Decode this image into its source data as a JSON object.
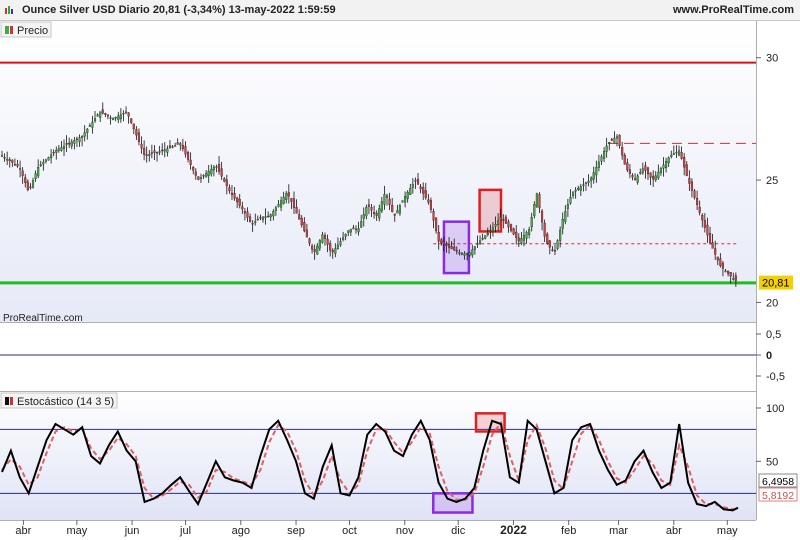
{
  "header": {
    "title": "Ounce Silver USD Diario 20,81 (-3,34%) 13-may-2022 1:59:59",
    "site": "www.ProRealTime.com"
  },
  "price_panel": {
    "legend": "Precio",
    "watermark": "ProRealTime.com",
    "last_label": "20,81",
    "last_value": 20.81,
    "resistance_level": 29.8,
    "support_level": 20.8,
    "dashed_upper_level": 26.5,
    "dashed_lower_level": 22.4,
    "ticks": [
      {
        "v": 30,
        "label": "30"
      },
      {
        "v": 25,
        "label": "25"
      },
      {
        "v": 20,
        "label": "20"
      }
    ]
  },
  "mid_panel": {
    "ticks": [
      {
        "v": 0.5,
        "label": "0,5"
      },
      {
        "v": 0,
        "label": "0"
      },
      {
        "v": -0.5,
        "label": "-0,5"
      }
    ]
  },
  "stoch_panel": {
    "legend": "Estocástico (14 3 5)",
    "k_label": "6,4958",
    "d_label": "5,8192",
    "upper_band": 80,
    "lower_band": 20,
    "ticks": [
      {
        "v": 100,
        "label": "100"
      },
      {
        "v": 50,
        "label": "50"
      }
    ]
  },
  "x_axis": {
    "months": [
      {
        "label": "abr",
        "day": 12
      },
      {
        "label": "may",
        "day": 42
      },
      {
        "label": "jun",
        "day": 73
      },
      {
        "label": "jul",
        "day": 103
      },
      {
        "label": "ago",
        "day": 134
      },
      {
        "label": "sep",
        "day": 165
      },
      {
        "label": "oct",
        "day": 195
      },
      {
        "label": "nov",
        "day": 226
      },
      {
        "label": "dic",
        "day": 256
      },
      {
        "label": "2022",
        "day": 287,
        "bold": true
      },
      {
        "label": "feb",
        "day": 318
      },
      {
        "label": "mar",
        "day": 346
      },
      {
        "label": "abr",
        "day": 377
      },
      {
        "label": "may",
        "day": 407
      }
    ]
  },
  "chart_data": {
    "type": "line",
    "x_unit": "days",
    "series": [
      {
        "name": "Precio",
        "x": [
          0,
          10,
          15,
          20,
          30,
          45,
          55,
          62,
          70,
          80,
          90,
          100,
          110,
          120,
          128,
          135,
          140,
          146,
          150,
          160,
          168,
          175,
          180,
          185,
          190,
          195,
          200,
          205,
          210,
          215,
          220,
          225,
          232,
          240,
          245,
          252,
          258,
          262,
          268,
          275,
          280,
          285,
          290,
          296,
          300,
          305,
          310,
          315,
          320,
          330,
          340,
          345,
          350,
          355,
          360,
          365,
          370,
          375,
          380,
          385,
          390,
          397,
          403,
          410,
          413
        ],
        "values": [
          26.0,
          25.5,
          24.5,
          25.5,
          26.2,
          26.8,
          27.8,
          27.5,
          27.8,
          26.0,
          26.2,
          26.5,
          25.0,
          25.6,
          24.5,
          23.8,
          23.2,
          23.5,
          23.5,
          24.5,
          23.2,
          22.0,
          22.8,
          22.0,
          22.5,
          23.0,
          23.0,
          24.0,
          23.5,
          24.5,
          23.5,
          24.2,
          25.0,
          24.0,
          22.5,
          22.2,
          22.0,
          22.0,
          22.5,
          23.0,
          23.5,
          23.0,
          22.5,
          23.0,
          24.5,
          22.5,
          22.0,
          23.5,
          24.5,
          25.0,
          26.5,
          26.8,
          25.5,
          25.0,
          25.5,
          25.0,
          25.5,
          26.0,
          26.2,
          25.0,
          24.0,
          22.5,
          21.5,
          21.0,
          20.81
        ]
      },
      {
        "name": "%K",
        "x": [
          0,
          5,
          10,
          15,
          20,
          25,
          30,
          35,
          40,
          45,
          50,
          55,
          60,
          65,
          70,
          75,
          80,
          85,
          90,
          95,
          100,
          105,
          110,
          115,
          120,
          125,
          130,
          135,
          140,
          145,
          150,
          155,
          160,
          165,
          170,
          175,
          180,
          185,
          190,
          195,
          200,
          205,
          210,
          215,
          220,
          225,
          230,
          235,
          240,
          245,
          250,
          255,
          260,
          265,
          270,
          275,
          280,
          285,
          290,
          295,
          300,
          305,
          310,
          315,
          320,
          325,
          330,
          335,
          340,
          345,
          350,
          355,
          360,
          365,
          370,
          375,
          380,
          385,
          390,
          395,
          400,
          405,
          410,
          413
        ],
        "values": [
          40,
          60,
          35,
          20,
          45,
          70,
          85,
          80,
          75,
          82,
          55,
          48,
          65,
          78,
          60,
          50,
          12,
          15,
          20,
          28,
          35,
          22,
          10,
          30,
          50,
          35,
          32,
          30,
          25,
          55,
          80,
          88,
          70,
          50,
          20,
          15,
          45,
          65,
          20,
          18,
          35,
          75,
          85,
          78,
          60,
          55,
          75,
          88,
          70,
          30,
          15,
          12,
          15,
          25,
          60,
          88,
          85,
          35,
          30,
          88,
          80,
          50,
          20,
          25,
          70,
          82,
          85,
          60,
          42,
          28,
          32,
          50,
          60,
          40,
          25,
          30,
          85,
          30,
          10,
          8,
          12,
          5,
          4,
          6.5
        ]
      },
      {
        "name": "%D",
        "x": [
          0,
          5,
          10,
          15,
          20,
          25,
          30,
          35,
          40,
          45,
          50,
          55,
          60,
          65,
          70,
          75,
          80,
          85,
          90,
          95,
          100,
          105,
          110,
          115,
          120,
          125,
          130,
          135,
          140,
          145,
          150,
          155,
          160,
          165,
          170,
          175,
          180,
          185,
          190,
          195,
          200,
          205,
          210,
          215,
          220,
          225,
          230,
          235,
          240,
          245,
          250,
          255,
          260,
          265,
          270,
          275,
          280,
          285,
          290,
          295,
          300,
          305,
          310,
          315,
          320,
          325,
          330,
          335,
          340,
          345,
          350,
          355,
          360,
          365,
          370,
          375,
          380,
          385,
          390,
          395,
          400,
          405,
          410,
          413
        ],
        "values": [
          42,
          52,
          45,
          28,
          35,
          58,
          78,
          82,
          78,
          80,
          62,
          52,
          60,
          72,
          66,
          55,
          25,
          15,
          18,
          24,
          31,
          28,
          16,
          22,
          42,
          40,
          34,
          31,
          28,
          42,
          68,
          84,
          78,
          60,
          32,
          18,
          32,
          55,
          32,
          20,
          28,
          60,
          80,
          80,
          68,
          58,
          68,
          82,
          76,
          45,
          22,
          14,
          14,
          20,
          45,
          75,
          86,
          55,
          32,
          70,
          84,
          62,
          32,
          24,
          50,
          76,
          84,
          70,
          50,
          34,
          30,
          42,
          55,
          48,
          32,
          28,
          65,
          45,
          18,
          10,
          10,
          7,
          5,
          5.8
        ]
      }
    ],
    "price_ylim": [
      19.2,
      31.5
    ],
    "stoch_ylim": [
      -5,
      115
    ],
    "annotations": [
      {
        "type": "box",
        "color": "#8a2be2",
        "panel": "price",
        "x0": 248,
        "x1": 262,
        "y0": 21.2,
        "y1": 23.3
      },
      {
        "type": "box",
        "color": "#e02020",
        "panel": "price",
        "x0": 268,
        "x1": 280,
        "y0": 22.9,
        "y1": 24.6
      },
      {
        "type": "box",
        "color": "#8a2be2",
        "panel": "stoch",
        "x0": 242,
        "x1": 264,
        "y0": 2,
        "y1": 20
      },
      {
        "type": "box",
        "color": "#e02020",
        "panel": "stoch",
        "x0": 266,
        "x1": 282,
        "y0": 78,
        "y1": 95
      }
    ]
  },
  "colors": {
    "resistance": "#e01010",
    "support": "#22bb22",
    "k_line": "#000000",
    "d_line": "#e06060",
    "band_line": "#2a2a8a",
    "purple_box": "#8a2be2",
    "red_box": "#e02020",
    "last_label_bg": "#f5d000"
  }
}
